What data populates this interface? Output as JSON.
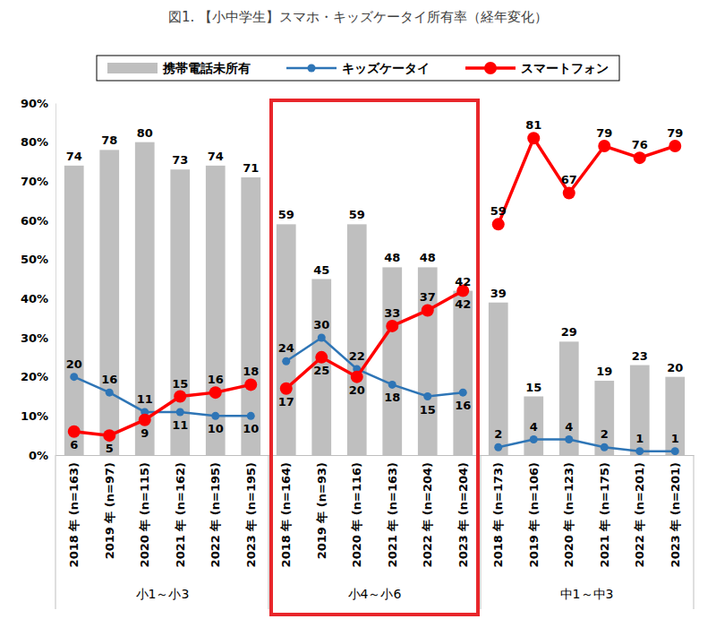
{
  "chart_data": {
    "type": "bar",
    "title": "図1. 【小中学生】スマホ・キッズケータイ所有率（経年変化）",
    "categories": [
      "2018 年 (n=163)",
      "2019 年 (n=97)",
      "2020 年 (n=115)",
      "2021 年 (n=162)",
      "2022 年 (n=195)",
      "2023 年 (n=195)",
      "2018 年 (n=164)",
      "2019 年 (n=93)",
      "2020 年 (n=116)",
      "2021 年 (n=163)",
      "2022 年 (n=204)",
      "2023 年 (n=204)",
      "2018 年 (n=173)",
      "2019 年 (n=106)",
      "2020 年 (n=123)",
      "2021 年 (n=175)",
      "2022 年 (n=201)",
      "2023 年 (n=201)"
    ],
    "group_labels": [
      "小1～小3",
      "小4～小6",
      "中1～中3"
    ],
    "series": [
      {
        "name": "携帯電話未所有",
        "type": "bar",
        "color": "#bfbfbf",
        "values": [
          74,
          78,
          80,
          73,
          74,
          71,
          59,
          45,
          59,
          48,
          48,
          42,
          39,
          15,
          29,
          19,
          23,
          20
        ]
      },
      {
        "name": "キッズケータイ",
        "type": "line",
        "color": "#2e75b6",
        "marker": "circle",
        "values": [
          20,
          16,
          11,
          11,
          10,
          10,
          24,
          30,
          22,
          18,
          15,
          16,
          2,
          4,
          4,
          2,
          1,
          1
        ]
      },
      {
        "name": "スマートフォン",
        "type": "line",
        "color": "#ff0000",
        "marker": "circle",
        "values": [
          6,
          5,
          9,
          15,
          16,
          18,
          17,
          25,
          20,
          33,
          37,
          42,
          59,
          81,
          67,
          79,
          76,
          79
        ]
      }
    ],
    "ylim": [
      0,
      90
    ],
    "yticks": [
      {
        "value": 0,
        "label": "0%"
      },
      {
        "value": 10,
        "label": "10%"
      },
      {
        "value": 20,
        "label": "20%"
      },
      {
        "value": 30,
        "label": "30%"
      },
      {
        "value": 40,
        "label": "40%"
      },
      {
        "value": 50,
        "label": "50%"
      },
      {
        "value": 60,
        "label": "60%"
      },
      {
        "value": 70,
        "label": "70%"
      },
      {
        "value": 80,
        "label": "80%"
      },
      {
        "value": 90,
        "label": "90%"
      }
    ],
    "grid": false,
    "legend": "top",
    "data_labels": true
  }
}
